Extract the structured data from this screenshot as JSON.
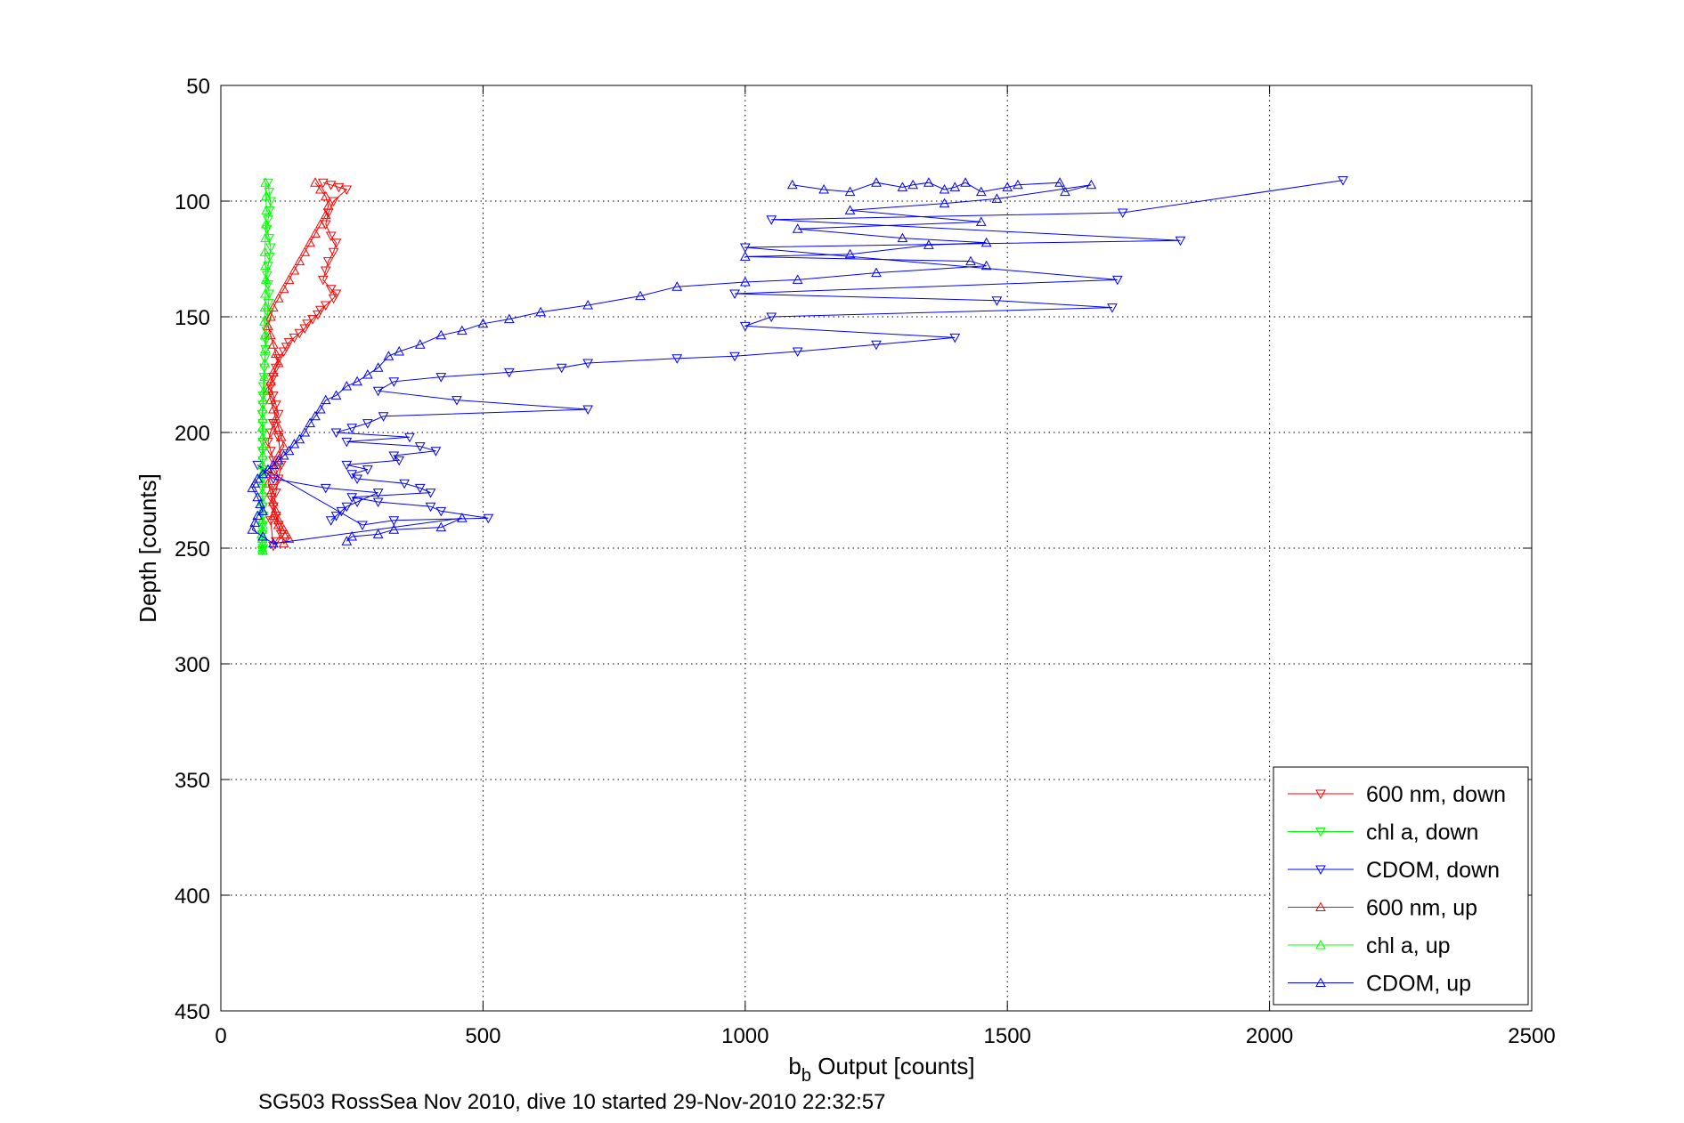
{
  "chart_data": {
    "type": "scatter",
    "title": "",
    "xlabel_main": "b",
    "xlabel_sub": "b",
    "xlabel_rest": " Output [counts]",
    "ylabel": "Depth [counts]",
    "caption": "SG503 RossSea Nov 2010, dive 10 started 29-Nov-2010 22:32:57",
    "xlim": [
      0,
      2500
    ],
    "ylim": [
      50,
      450
    ],
    "y_reversed": true,
    "grid": true,
    "legend_position": "bottom-right",
    "xticks": [
      0,
      500,
      1000,
      1500,
      2000,
      2500
    ],
    "yticks": [
      50,
      100,
      150,
      200,
      250,
      300,
      350,
      400,
      450
    ],
    "xtick_labels": [
      "0",
      "500",
      "1000",
      "1500",
      "2000",
      "2500"
    ],
    "ytick_labels": [
      "50",
      "100",
      "150",
      "200",
      "250",
      "300",
      "350",
      "400",
      "450"
    ],
    "series": [
      {
        "name": "600 nm, down",
        "color": "#ff0000",
        "marker": "triangle-down",
        "x": [
          195,
          210,
          225,
          240,
          215,
          205,
          200,
          210,
          220,
          215,
          205,
          200,
          195,
          210,
          220,
          215,
          200,
          190,
          185,
          175,
          165,
          160,
          150,
          140,
          130,
          125,
          120,
          110,
          105,
          100,
          95,
          100,
          105,
          110,
          100,
          95,
          90,
          95,
          100,
          105,
          110,
          100,
          95,
          100,
          105,
          110,
          115,
          105,
          100,
          95,
          100,
          105,
          115,
          110,
          100
        ],
        "y": [
          92,
          93,
          94,
          95,
          100,
          105,
          110,
          115,
          118,
          122,
          126,
          130,
          134,
          138,
          140,
          142,
          145,
          147,
          149,
          151,
          153,
          155,
          157,
          159,
          161,
          163,
          165,
          168,
          172,
          176,
          180,
          184,
          188,
          192,
          196,
          200,
          204,
          208,
          212,
          216,
          220,
          224,
          228,
          232,
          236,
          240,
          244,
          247,
          249,
          238,
          232,
          226,
          214,
          202,
          196
        ]
      },
      {
        "name": "chl a, down",
        "color": "#00ff00",
        "marker": "triangle-down",
        "x": [
          90,
          92,
          95,
          93,
          90,
          88,
          92,
          95,
          93,
          90,
          88,
          90,
          92,
          91,
          89,
          88,
          87,
          86,
          85,
          84,
          83,
          82,
          81,
          80,
          80,
          79,
          80,
          81,
          80,
          79,
          80,
          81,
          80,
          79,
          80,
          80,
          81,
          80,
          79,
          80,
          80,
          79,
          80
        ],
        "y": [
          92,
          96,
          100,
          104,
          108,
          112,
          116,
          120,
          124,
          128,
          132,
          136,
          140,
          144,
          148,
          152,
          156,
          160,
          164,
          168,
          172,
          176,
          180,
          184,
          188,
          192,
          196,
          200,
          204,
          208,
          212,
          216,
          220,
          224,
          228,
          232,
          236,
          240,
          244,
          248,
          250,
          251,
          250
        ]
      },
      {
        "name": "CDOM, down",
        "color": "#0000ff",
        "marker": "triangle-down",
        "x": [
          2140,
          1720,
          1050,
          1830,
          1000,
          1710,
          980,
          1480,
          1700,
          1050,
          1000,
          1400,
          1250,
          1100,
          980,
          870,
          700,
          650,
          550,
          420,
          330,
          300,
          450,
          700,
          310,
          280,
          250,
          220,
          360,
          240,
          380,
          410,
          330,
          340,
          240,
          280,
          250,
          260,
          350,
          380,
          400,
          250,
          300,
          400,
          420,
          510,
          330,
          270,
          70,
          100,
          200,
          300,
          260,
          240,
          230,
          220,
          210
        ],
        "y": [
          91,
          105,
          108,
          117,
          120,
          134,
          140,
          143,
          146,
          150,
          154,
          159,
          162,
          165,
          167,
          168,
          170,
          172,
          174,
          176,
          178,
          182,
          186,
          190,
          193,
          196,
          198,
          200,
          202,
          204,
          206,
          208,
          210,
          212,
          214,
          216,
          218,
          220,
          222,
          224,
          226,
          228,
          230,
          232,
          234,
          237,
          238,
          240,
          214,
          220,
          224,
          226,
          230,
          232,
          234,
          236,
          238
        ]
      },
      {
        "name": "600 nm, up",
        "color": "#ff0000",
        "marker": "triangle-up",
        "x": [
          180,
          190,
          200,
          205,
          200,
          190,
          180,
          170,
          160,
          150,
          140,
          130,
          120,
          110,
          100,
          95,
          90,
          95,
          100,
          105,
          110,
          100,
          95,
          90,
          95,
          100,
          105,
          110,
          115,
          120,
          110,
          100,
          95,
          90,
          95,
          100,
          105,
          110,
          120,
          125,
          130,
          120,
          110,
          100
        ],
        "y": [
          92,
          95,
          98,
          102,
          106,
          110,
          114,
          118,
          122,
          126,
          130,
          134,
          138,
          142,
          146,
          150,
          154,
          158,
          162,
          166,
          170,
          174,
          178,
          182,
          186,
          190,
          194,
          198,
          202,
          206,
          210,
          214,
          218,
          222,
          226,
          230,
          234,
          238,
          242,
          244,
          246,
          248,
          240,
          236
        ]
      },
      {
        "name": "chl a, up",
        "color": "#00ff00",
        "marker": "triangle-up",
        "x": [
          85,
          86,
          87,
          86,
          85,
          84,
          85,
          86,
          85,
          84,
          83,
          84,
          85,
          84,
          83,
          82,
          81,
          80,
          80,
          79,
          80,
          81,
          80,
          79,
          78,
          79,
          80,
          79,
          78,
          79,
          80,
          79,
          78,
          79,
          80,
          79,
          80
        ],
        "y": [
          92,
          98,
          104,
          110,
          116,
          122,
          128,
          134,
          140,
          146,
          152,
          158,
          164,
          170,
          176,
          182,
          186,
          190,
          194,
          198,
          202,
          206,
          210,
          214,
          218,
          222,
          226,
          230,
          234,
          238,
          240,
          242,
          244,
          246,
          248,
          250,
          251
        ]
      },
      {
        "name": "CDOM, up",
        "color": "#0000ff",
        "marker": "triangle-up",
        "x": [
          1090,
          1150,
          1200,
          1250,
          1300,
          1320,
          1350,
          1380,
          1400,
          1420,
          1450,
          1500,
          1520,
          1600,
          1610,
          1660,
          1480,
          1380,
          1200,
          1450,
          1100,
          1300,
          1460,
          1350,
          1200,
          1000,
          1430,
          1460,
          1250,
          1100,
          1000,
          870,
          800,
          700,
          610,
          550,
          500,
          460,
          420,
          380,
          340,
          320,
          300,
          280,
          260,
          240,
          220,
          200,
          190,
          180,
          170,
          160,
          150,
          140,
          130,
          120,
          110,
          100,
          90,
          80,
          70,
          65,
          60,
          70,
          75,
          80,
          70,
          65,
          60,
          80,
          100,
          460,
          420,
          330,
          300,
          250,
          240
        ],
        "y": [
          93,
          95,
          96,
          92,
          94,
          93,
          92,
          95,
          94,
          92,
          96,
          94,
          93,
          92,
          96,
          93,
          99,
          101,
          104,
          109,
          112,
          116,
          118,
          119,
          123,
          124,
          126,
          128,
          131,
          134,
          135,
          137,
          141,
          145,
          148,
          151,
          153,
          156,
          158,
          162,
          165,
          167,
          172,
          175,
          178,
          180,
          184,
          186,
          190,
          193,
          196,
          200,
          203,
          205,
          208,
          210,
          212,
          214,
          216,
          218,
          220,
          222,
          224,
          228,
          231,
          234,
          236,
          239,
          242,
          245,
          248,
          237,
          241,
          242,
          244,
          245,
          247
        ]
      }
    ]
  }
}
